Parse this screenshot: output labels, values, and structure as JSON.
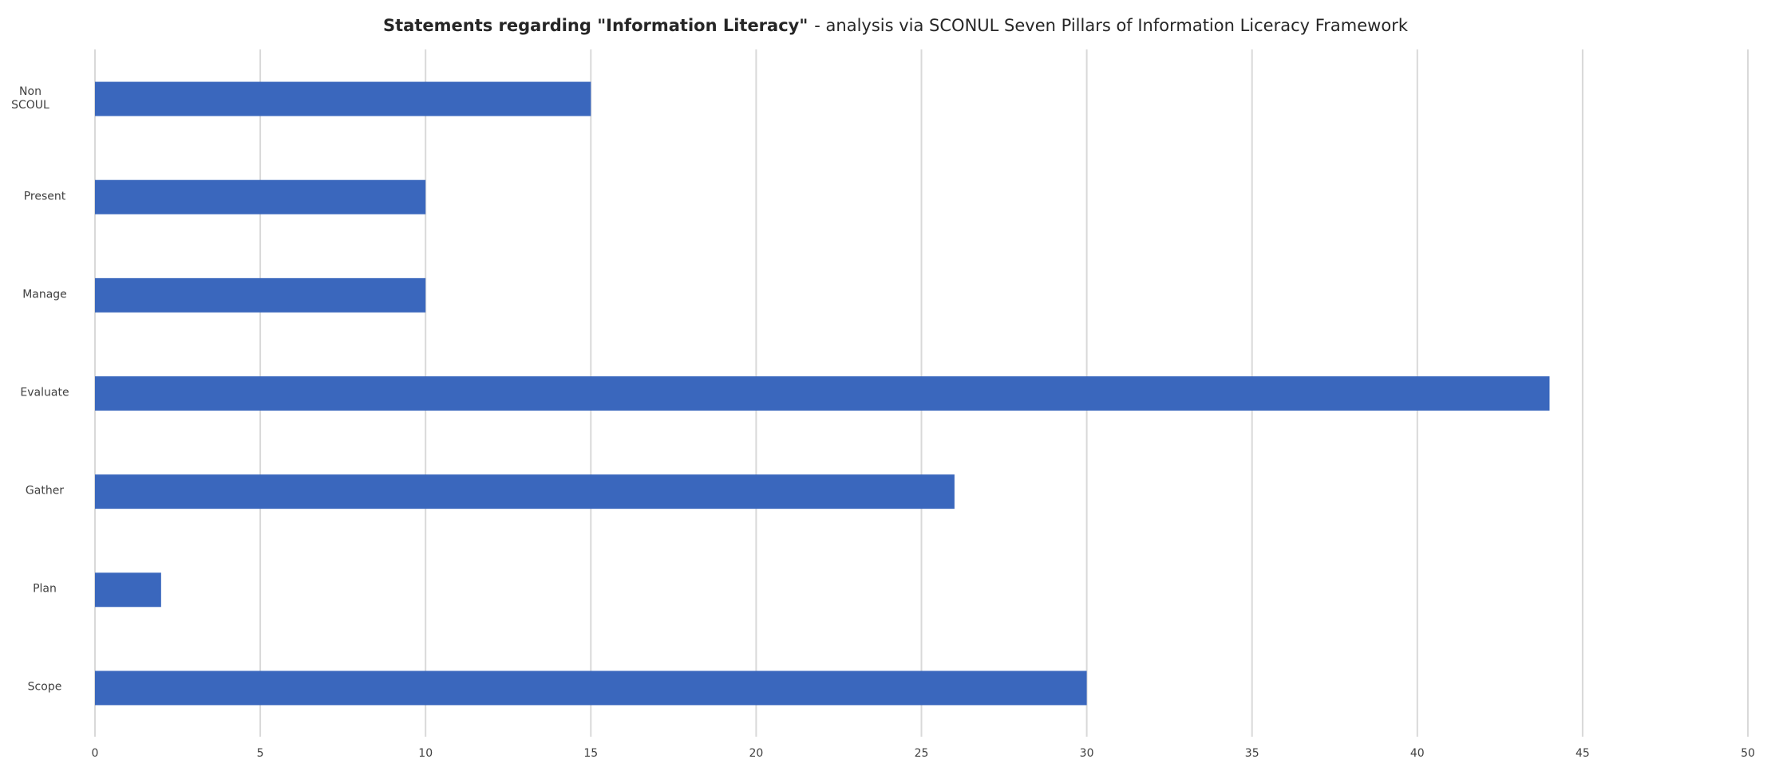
{
  "chart_data": {
    "type": "hbar",
    "title": [
      "Statements regarding \"Information Literacy\"",
      "- analysis via SCONUL Seven Pillars of Information Liceracy Framework"
    ],
    "categories": [
      "Non SCOUL",
      "Present",
      "Manage",
      "Evaluate",
      "Gather",
      "Plan",
      "Scope"
    ],
    "values": [
      15,
      10,
      10,
      44,
      26,
      2,
      30
    ],
    "color": "#3a67bd",
    "xlim": [
      0,
      50
    ],
    "xticks": [
      0,
      5,
      10,
      15,
      20,
      25,
      30,
      35,
      40,
      45,
      50
    ],
    "grid": true
  }
}
